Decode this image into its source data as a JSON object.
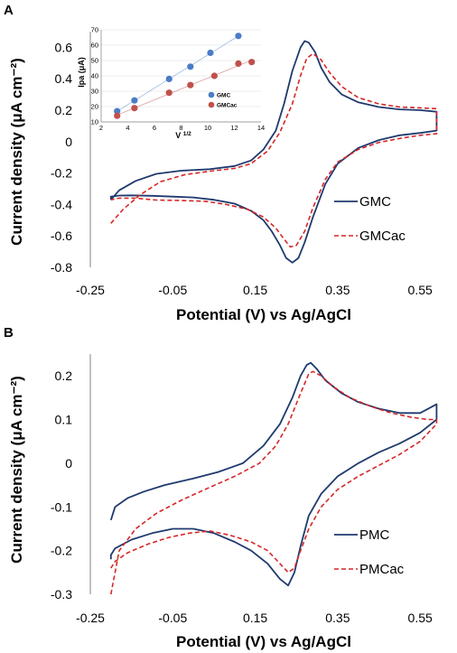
{
  "chart_data": [
    {
      "panel": "A",
      "type": "line",
      "xlabel": "Potential (V) vs Ag/AgCl",
      "ylabel": "Current density (μA cm⁻²)",
      "xlim": [
        -0.25,
        0.6
      ],
      "ylim": [
        -0.8,
        0.7
      ],
      "xticks": [
        "-0.25",
        "-0.05",
        "0.15",
        "0.35",
        "0.55"
      ],
      "xtick_values": [
        -0.25,
        -0.05,
        0.15,
        0.35,
        0.55
      ],
      "yticks": [
        "0.6",
        "0.4",
        "0.2",
        "0",
        "-0.2",
        "-0.4",
        "-0.6",
        "-0.8"
      ],
      "ytick_values": [
        0.6,
        0.4,
        0.2,
        0,
        -0.2,
        -0.4,
        -0.6,
        -0.8
      ],
      "legend_position": "right",
      "series": [
        {
          "name": "GMC",
          "color": "#1f3a6e",
          "style": "solid",
          "x": [
            -0.2,
            -0.18,
            -0.14,
            -0.09,
            -0.03,
            0.04,
            0.1,
            0.14,
            0.17,
            0.2,
            0.22,
            0.24,
            0.26,
            0.27,
            0.28,
            0.295,
            0.31,
            0.33,
            0.36,
            0.4,
            0.45,
            0.5,
            0.55,
            0.59,
            0.59,
            0.55,
            0.5,
            0.45,
            0.4,
            0.35,
            0.32,
            0.29,
            0.27,
            0.255,
            0.24,
            0.225,
            0.21,
            0.19,
            0.17,
            0.14,
            0.1,
            0.05,
            0.0,
            -0.05,
            -0.1,
            -0.15,
            -0.18,
            -0.2,
            -0.2
          ],
          "y": [
            -0.37,
            -0.31,
            -0.25,
            -0.205,
            -0.185,
            -0.175,
            -0.155,
            -0.12,
            -0.05,
            0.07,
            0.24,
            0.45,
            0.6,
            0.64,
            0.63,
            0.57,
            0.47,
            0.38,
            0.3,
            0.25,
            0.22,
            0.205,
            0.2,
            0.19,
            0.07,
            0.055,
            0.04,
            0.01,
            -0.04,
            -0.14,
            -0.27,
            -0.48,
            -0.64,
            -0.74,
            -0.77,
            -0.74,
            -0.66,
            -0.57,
            -0.5,
            -0.44,
            -0.395,
            -0.37,
            -0.355,
            -0.35,
            -0.345,
            -0.342,
            -0.343,
            -0.35,
            -0.37
          ]
        },
        {
          "name": "GMCac",
          "color": "#d62728",
          "style": "dashed",
          "x": [
            -0.2,
            -0.17,
            -0.13,
            -0.08,
            -0.02,
            0.05,
            0.1,
            0.14,
            0.18,
            0.21,
            0.24,
            0.26,
            0.275,
            0.29,
            0.31,
            0.33,
            0.36,
            0.4,
            0.45,
            0.5,
            0.55,
            0.59,
            0.59,
            0.55,
            0.5,
            0.45,
            0.4,
            0.35,
            0.32,
            0.29,
            0.27,
            0.25,
            0.235,
            0.22,
            0.2,
            0.17,
            0.13,
            0.08,
            0.03,
            -0.03,
            -0.09,
            -0.14,
            -0.18,
            -0.2
          ],
          "y": [
            -0.52,
            -0.43,
            -0.34,
            -0.255,
            -0.21,
            -0.185,
            -0.17,
            -0.14,
            -0.06,
            0.06,
            0.24,
            0.42,
            0.53,
            0.56,
            0.52,
            0.44,
            0.35,
            0.28,
            0.24,
            0.22,
            0.215,
            0.21,
            0.05,
            0.04,
            0.02,
            -0.005,
            -0.05,
            -0.13,
            -0.24,
            -0.42,
            -0.57,
            -0.66,
            -0.67,
            -0.62,
            -0.55,
            -0.48,
            -0.43,
            -0.4,
            -0.38,
            -0.375,
            -0.372,
            -0.36,
            -0.36,
            -0.37
          ]
        }
      ],
      "inset": {
        "type": "scatter",
        "xlabel": "V 1/2",
        "ylabel": "Ipa (μA)",
        "xlim": [
          2,
          14
        ],
        "ylim": [
          10,
          70
        ],
        "xticks": [
          "2",
          "4",
          "6",
          "8",
          "10",
          "12",
          "14"
        ],
        "xtick_values": [
          2,
          4,
          6,
          8,
          10,
          12,
          14
        ],
        "yticks": [
          "10",
          "20",
          "30",
          "40",
          "50",
          "60",
          "70"
        ],
        "ytick_values": [
          10,
          20,
          30,
          40,
          50,
          60,
          70
        ],
        "grid": true,
        "series": [
          {
            "name": "GMC",
            "color": "#4a7cc6",
            "x": [
              3.2,
              4.5,
              7.1,
              8.7,
              10.2,
              12.3
            ],
            "y": [
              17,
              24,
              38,
              46,
              55,
              66
            ]
          },
          {
            "name": "GMCac",
            "color": "#c0504d",
            "x": [
              3.2,
              4.5,
              7.1,
              8.7,
              10.5,
              12.3,
              13.3
            ],
            "y": [
              14,
              19,
              29,
              34,
              40,
              48,
              49
            ]
          }
        ]
      }
    },
    {
      "panel": "B",
      "type": "line",
      "xlabel": "Potential (V) vs Ag/AgCl",
      "ylabel": "Current density (μA cm⁻²)",
      "xlim": [
        -0.25,
        0.6
      ],
      "ylim": [
        -0.3,
        0.25
      ],
      "xticks": [
        "-0.25",
        "-0.05",
        "0.15",
        "0.35",
        "0.55"
      ],
      "xtick_values": [
        -0.25,
        -0.05,
        0.15,
        0.35,
        0.55
      ],
      "yticks": [
        "0.2",
        "0.1",
        "0",
        "-0.1",
        "-0.2",
        "-0.3"
      ],
      "ytick_values": [
        0.2,
        0.1,
        0,
        -0.1,
        -0.2,
        -0.3
      ],
      "legend_position": "right",
      "series": [
        {
          "name": "PMC",
          "color": "#1f3a6e",
          "style": "solid",
          "x": [
            -0.2,
            -0.19,
            -0.16,
            -0.12,
            -0.07,
            0.0,
            0.06,
            0.12,
            0.17,
            0.21,
            0.24,
            0.26,
            0.275,
            0.285,
            0.3,
            0.32,
            0.36,
            0.4,
            0.45,
            0.5,
            0.55,
            0.59,
            0.59,
            0.55,
            0.5,
            0.45,
            0.4,
            0.35,
            0.31,
            0.28,
            0.26,
            0.245,
            0.23,
            0.21,
            0.18,
            0.14,
            0.1,
            0.05,
            0.0,
            -0.05,
            -0.1,
            -0.15,
            -0.19,
            -0.2,
            -0.2
          ],
          "y": [
            -0.13,
            -0.1,
            -0.08,
            -0.065,
            -0.05,
            -0.035,
            -0.02,
            0.0,
            0.04,
            0.09,
            0.15,
            0.2,
            0.225,
            0.23,
            0.215,
            0.19,
            0.16,
            0.14,
            0.125,
            0.115,
            0.115,
            0.135,
            0.1,
            0.07,
            0.045,
            0.025,
            0.0,
            -0.03,
            -0.07,
            -0.12,
            -0.19,
            -0.25,
            -0.28,
            -0.265,
            -0.23,
            -0.2,
            -0.18,
            -0.16,
            -0.15,
            -0.15,
            -0.16,
            -0.175,
            -0.195,
            -0.21,
            -0.22
          ]
        },
        {
          "name": "PMCac",
          "color": "#d62728",
          "style": "dashed",
          "x": [
            -0.2,
            -0.18,
            -0.14,
            -0.09,
            -0.03,
            0.04,
            0.1,
            0.16,
            0.2,
            0.23,
            0.26,
            0.28,
            0.29,
            0.31,
            0.34,
            0.38,
            0.43,
            0.48,
            0.53,
            0.57,
            0.59,
            0.59,
            0.55,
            0.5,
            0.45,
            0.4,
            0.35,
            0.31,
            0.28,
            0.26,
            0.245,
            0.23,
            0.21,
            0.18,
            0.14,
            0.09,
            0.04,
            -0.01,
            -0.06,
            -0.11,
            -0.16,
            -0.19,
            -0.2
          ],
          "y": [
            -0.3,
            -0.2,
            -0.15,
            -0.115,
            -0.085,
            -0.055,
            -0.03,
            0.0,
            0.04,
            0.09,
            0.16,
            0.205,
            0.21,
            0.2,
            0.175,
            0.15,
            0.13,
            0.115,
            0.105,
            0.1,
            0.1,
            0.09,
            0.05,
            0.02,
            -0.005,
            -0.03,
            -0.06,
            -0.1,
            -0.15,
            -0.2,
            -0.24,
            -0.25,
            -0.23,
            -0.2,
            -0.18,
            -0.165,
            -0.155,
            -0.16,
            -0.17,
            -0.185,
            -0.205,
            -0.225,
            -0.24
          ]
        }
      ]
    }
  ]
}
